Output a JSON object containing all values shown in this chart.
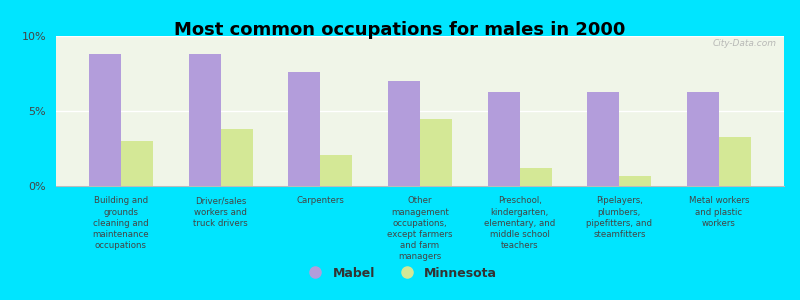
{
  "title": "Most common occupations for males in 2000",
  "categories": [
    "Building and\ngrounds\ncleaning and\nmaintenance\noccupations",
    "Driver/sales\nworkers and\ntruck drivers",
    "Carpenters",
    "Other\nmanagement\noccupations,\nexcept farmers\nand farm\nmanagers",
    "Preschool,\nkindergarten,\nelementary, and\nmiddle school\nteachers",
    "Pipelayers,\nplumbers,\npipefitters, and\nsteamfitters",
    "Metal workers\nand plastic\nworkers"
  ],
  "mabel_values": [
    8.8,
    8.8,
    7.6,
    7.0,
    6.3,
    6.3,
    6.3
  ],
  "minnesota_values": [
    3.0,
    3.8,
    2.1,
    4.5,
    1.2,
    0.7,
    3.3
  ],
  "mabel_color": "#b39ddb",
  "minnesota_color": "#d4e896",
  "background_color": "#00e5ff",
  "plot_bg_color": "#f0f5e8",
  "ylim": [
    0,
    10
  ],
  "yticks": [
    0,
    5,
    10
  ],
  "ytick_labels": [
    "0%",
    "5%",
    "10%"
  ],
  "title_fontsize": 13,
  "legend_labels": [
    "Mabel",
    "Minnesota"
  ],
  "watermark": "City-Data.com"
}
